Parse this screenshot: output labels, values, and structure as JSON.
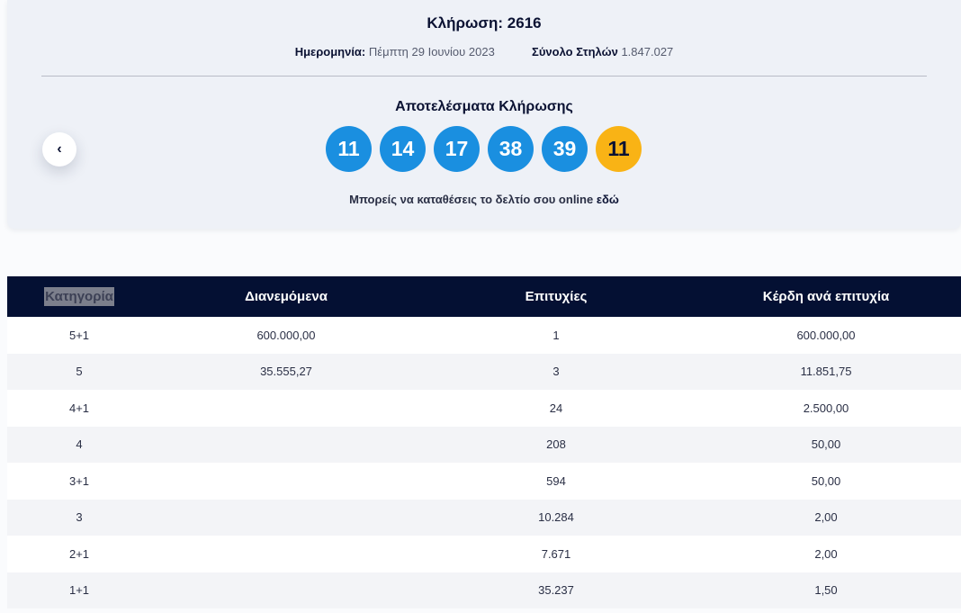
{
  "draw": {
    "title": "Κλήρωση: 2616",
    "date_label": "Ημερομηνία:",
    "date_value": "Πέμπτη 29 Ιουνίου 2023",
    "columns_label": "Σύνολο Στηλών",
    "columns_value": "1.847.027",
    "results_title": "Αποτελέσματα Κλήρωσης",
    "numbers": [
      "11",
      "14",
      "17",
      "38",
      "39"
    ],
    "bonus": "11",
    "online_text": "Μπορείς να καταθέσεις το δελτίο σου online",
    "online_link": "εδώ",
    "prev_icon": "‹"
  },
  "colors": {
    "ball": "#1a8fe0",
    "bonus_ball": "#f9b315",
    "table_header": "#041033"
  },
  "table": {
    "headers": [
      "Κατηγορία",
      "Διανεμόμενα",
      "Επιτυχίες",
      "Κέρδη ανά επιτυχία"
    ],
    "rows": [
      [
        "5+1",
        "600.000,00",
        "1",
        "600.000,00"
      ],
      [
        "5",
        "35.555,27",
        "3",
        "11.851,75"
      ],
      [
        "4+1",
        "",
        "24",
        "2.500,00"
      ],
      [
        "4",
        "",
        "208",
        "50,00"
      ],
      [
        "3+1",
        "",
        "594",
        "50,00"
      ],
      [
        "3",
        "",
        "10.284",
        "2,00"
      ],
      [
        "2+1",
        "",
        "7.671",
        "2,00"
      ],
      [
        "1+1",
        "",
        "35.237",
        "1,50"
      ]
    ]
  }
}
